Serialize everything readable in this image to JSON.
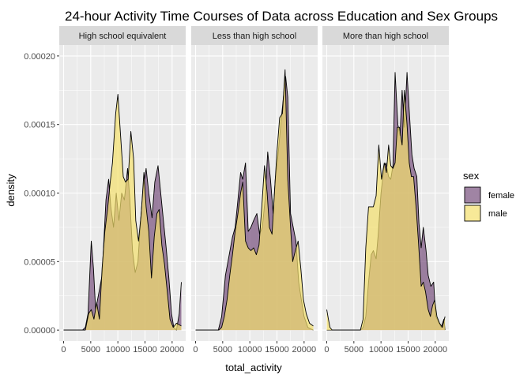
{
  "chart_data": {
    "type": "area",
    "title": "24-hour Activity Time Courses of Data across Education and Sex Groups",
    "xlabel": "total_activity",
    "ylabel": "density",
    "xlim": [
      -800,
      22500
    ],
    "ylim": [
      -8e-06,
      0.000208
    ],
    "x_ticks": [
      0,
      5000,
      10000,
      15000,
      20000
    ],
    "x_tick_labels": [
      "0",
      "5000",
      "10000",
      "15000",
      "20000"
    ],
    "y_ticks": [
      0,
      5e-05,
      0.0001,
      0.00015,
      0.0002
    ],
    "y_tick_labels": [
      "0.00000",
      "0.00005",
      "0.00010",
      "0.00015",
      "0.00020"
    ],
    "grid": true,
    "legend": {
      "title": "sex",
      "position": "right",
      "entries": [
        {
          "label": "female",
          "color": "#77507e"
        },
        {
          "label": "male",
          "color": "#f4e06c"
        }
      ]
    },
    "panels": [
      {
        "label": "High school equivalent",
        "series": [
          {
            "name": "female",
            "points": [
              [
                0,
                0
              ],
              [
                3500,
                0
              ],
              [
                4000,
                2e-06
              ],
              [
                4500,
                1.2e-05
              ],
              [
                5100,
                6.5e-05
              ],
              [
                5500,
                4.5e-05
              ],
              [
                5900,
                1.5e-05
              ],
              [
                6400,
                2.5e-05
              ],
              [
                7100,
                4e-05
              ],
              [
                7800,
                9.5e-05
              ],
              [
                8300,
                0.00011
              ],
              [
                8700,
                9e-05
              ],
              [
                9200,
                7.5e-05
              ],
              [
                9700,
                0.0001
              ],
              [
                10200,
                8e-05
              ],
              [
                10700,
                0.0001
              ],
              [
                11200,
                9.5e-05
              ],
              [
                11800,
                0.000118
              ],
              [
                12200,
                9.5e-05
              ],
              [
                12700,
                5.8e-05
              ],
              [
                13200,
                4.2e-05
              ],
              [
                13700,
                5e-05
              ],
              [
                14200,
                8e-05
              ],
              [
                14700,
                0.000105
              ],
              [
                15200,
                0.000118
              ],
              [
                15700,
                0.0001
              ],
              [
                16300,
                8.2e-05
              ],
              [
                16800,
                0.000108
              ],
              [
                17400,
                0.00012
              ],
              [
                17900,
                0.0001
              ],
              [
                18400,
                8e-05
              ],
              [
                18900,
                6e-05
              ],
              [
                19400,
                3.8e-05
              ],
              [
                19900,
                1.2e-05
              ],
              [
                20300,
                2e-06
              ],
              [
                20800,
                0
              ],
              [
                21300,
                1.2e-05
              ],
              [
                21700,
                3.5e-05
              ]
            ]
          },
          {
            "name": "male",
            "points": [
              [
                0,
                0
              ],
              [
                4000,
                0
              ],
              [
                4600,
                1.2e-05
              ],
              [
                5100,
                1.5e-05
              ],
              [
                5600,
                8e-06
              ],
              [
                6100,
                2e-05
              ],
              [
                6600,
                8e-06
              ],
              [
                7100,
                4.5e-05
              ],
              [
                7600,
                7.2e-05
              ],
              [
                8100,
                8.8e-05
              ],
              [
                8600,
                0.000108
              ],
              [
                9000,
                0.000122
              ],
              [
                9600,
                0.000158
              ],
              [
                10000,
                0.000172
              ],
              [
                10500,
                0.000142
              ],
              [
                11000,
                0.000112
              ],
              [
                11400,
                0.000108
              ],
              [
                11900,
                0.00011
              ],
              [
                12400,
                0.000145
              ],
              [
                12900,
                0.000125
              ],
              [
                13300,
                8e-05
              ],
              [
                13800,
                6.5e-05
              ],
              [
                14300,
                8.5e-05
              ],
              [
                14800,
                0.000115
              ],
              [
                15200,
                9e-05
              ],
              [
                15700,
                7.2e-05
              ],
              [
                16200,
                3.8e-05
              ],
              [
                16700,
                6.8e-05
              ],
              [
                17200,
                8.5e-05
              ],
              [
                17600,
                8.8e-05
              ],
              [
                18100,
                6.2e-05
              ],
              [
                18600,
                4.8e-05
              ],
              [
                19100,
                2.8e-05
              ],
              [
                19600,
                8e-06
              ],
              [
                20200,
                2e-06
              ],
              [
                20800,
                5e-06
              ],
              [
                21700,
                3e-06
              ]
            ]
          }
        ]
      },
      {
        "label": "Less than high school",
        "series": [
          {
            "name": "female",
            "points": [
              [
                0,
                0
              ],
              [
                4200,
                0
              ],
              [
                4800,
                1e-05
              ],
              [
                5500,
                4e-05
              ],
              [
                6200,
                5.5e-05
              ],
              [
                6800,
                6.8e-05
              ],
              [
                7300,
                7.5e-05
              ],
              [
                7800,
                9.5e-05
              ],
              [
                8300,
                0.000115
              ],
              [
                8700,
                0.00011
              ],
              [
                9200,
                0.000122
              ],
              [
                9700,
                7.2e-05
              ],
              [
                10200,
                7.5e-05
              ],
              [
                10700,
                8e-05
              ],
              [
                11300,
                8.5e-05
              ],
              [
                11800,
                7e-05
              ],
              [
                12300,
                7.5e-05
              ],
              [
                12800,
                9.5e-05
              ],
              [
                13300,
                0.00013
              ],
              [
                13800,
                0.00011
              ],
              [
                14300,
                8.5e-05
              ],
              [
                14700,
                0.00011
              ],
              [
                15200,
                0.000128
              ],
              [
                15700,
                0.00015
              ],
              [
                16200,
                0.00017
              ],
              [
                16600,
                0.000185
              ],
              [
                17000,
                0.00017
              ],
              [
                17500,
                8.5e-05
              ],
              [
                18000,
                7.5e-05
              ],
              [
                18500,
                6.5e-05
              ],
              [
                19000,
                3.5e-05
              ],
              [
                19500,
                2.2e-05
              ],
              [
                20000,
                1e-05
              ],
              [
                20700,
                2e-06
              ],
              [
                21700,
                0
              ]
            ]
          },
          {
            "name": "male",
            "points": [
              [
                0,
                0
              ],
              [
                4300,
                0
              ],
              [
                4800,
                2e-06
              ],
              [
                5300,
                1e-05
              ],
              [
                5800,
                2.2e-05
              ],
              [
                6300,
                4e-05
              ],
              [
                6800,
                5.5e-05
              ],
              [
                7300,
                7.2e-05
              ],
              [
                7800,
                8.5e-05
              ],
              [
                8300,
                0.0001
              ],
              [
                8700,
                0.000108
              ],
              [
                9200,
                6.5e-05
              ],
              [
                9700,
                6e-05
              ],
              [
                10200,
                5.8e-05
              ],
              [
                10700,
                6e-05
              ],
              [
                11200,
                5.5e-05
              ],
              [
                11700,
                6.2e-05
              ],
              [
                12200,
                9e-05
              ],
              [
                12700,
                0.00012
              ],
              [
                13200,
                0.0001
              ],
              [
                13600,
                7.5e-05
              ],
              [
                14100,
                7e-05
              ],
              [
                14600,
                0.000105
              ],
              [
                15000,
                0.00013
              ],
              [
                15500,
                0.000155
              ],
              [
                16000,
                0.000158
              ],
              [
                16500,
                0.00019
              ],
              [
                17000,
                0.00011
              ],
              [
                17500,
                7.5e-05
              ],
              [
                17900,
                5e-05
              ],
              [
                18400,
                5.8e-05
              ],
              [
                18900,
                6.5e-05
              ],
              [
                19400,
                4.5e-05
              ],
              [
                19900,
                2.2e-05
              ],
              [
                20400,
                1.2e-05
              ],
              [
                21000,
                5e-06
              ],
              [
                21700,
                3e-06
              ]
            ]
          }
        ]
      },
      {
        "label": "More than high school",
        "series": [
          {
            "name": "female",
            "points": [
              [
                0,
                0
              ],
              [
                6200,
                0
              ],
              [
                6700,
                2e-06
              ],
              [
                7200,
                1e-05
              ],
              [
                7700,
                3.5e-05
              ],
              [
                8200,
                5.5e-05
              ],
              [
                8600,
                5.8e-05
              ],
              [
                9100,
                5.2e-05
              ],
              [
                9500,
                7e-05
              ],
              [
                10000,
                0.0001
              ],
              [
                10500,
                0.000118
              ],
              [
                10900,
                0.000122
              ],
              [
                11400,
                0.000112
              ],
              [
                11800,
                0.00011
              ],
              [
                12200,
                0.00012
              ],
              [
                12600,
                0.000188
              ],
              [
                13100,
                0.00015
              ],
              [
                13500,
                0.000142
              ],
              [
                13900,
                0.000175
              ],
              [
                14300,
                0.000148
              ],
              [
                14800,
                0.000188
              ],
              [
                15200,
                0.00016
              ],
              [
                15700,
                0.000128
              ],
              [
                16100,
                0.000118
              ],
              [
                16600,
                0.000112
              ],
              [
                17000,
                7.8e-05
              ],
              [
                17400,
                6e-05
              ],
              [
                17800,
                7.5e-05
              ],
              [
                18300,
                5.8e-05
              ],
              [
                18700,
                4e-05
              ],
              [
                19200,
                3.2e-05
              ],
              [
                19700,
                3.5e-05
              ],
              [
                20100,
                1e-05
              ],
              [
                20600,
                6e-06
              ],
              [
                21100,
                2e-06
              ],
              [
                21600,
                8e-06
              ],
              [
                21800,
                0
              ]
            ]
          },
          {
            "name": "male",
            "points": [
              [
                0,
                1.5e-05
              ],
              [
                300,
                8e-06
              ],
              [
                600,
                2e-06
              ],
              [
                1000,
                0
              ],
              [
                6200,
                0
              ],
              [
                6700,
                8e-06
              ],
              [
                7200,
                6e-05
              ],
              [
                7700,
                9e-05
              ],
              [
                8200,
                9e-05
              ],
              [
                8600,
                9e-05
              ],
              [
                9100,
                9.8e-05
              ],
              [
                9600,
                0.000135
              ],
              [
                10100,
                0.00011
              ],
              [
                10600,
                0.000122
              ],
              [
                11000,
                0.000115
              ],
              [
                11400,
                0.000135
              ],
              [
                11800,
                0.00012
              ],
              [
                12200,
                0.000118
              ],
              [
                12600,
                0.000122
              ],
              [
                13000,
                0.000148
              ],
              [
                13400,
                0.000148
              ],
              [
                13900,
                0.000135
              ],
              [
                14300,
                0.000175
              ],
              [
                14800,
                0.00015
              ],
              [
                15200,
                0.000122
              ],
              [
                15600,
                0.000112
              ],
              [
                16000,
                0.000112
              ],
              [
                16500,
                8.8e-05
              ],
              [
                16900,
                6.5e-05
              ],
              [
                17400,
                3.2e-05
              ],
              [
                17800,
                3.5e-05
              ],
              [
                18200,
                2.8e-05
              ],
              [
                18700,
                1.5e-05
              ],
              [
                19100,
                1e-05
              ],
              [
                19500,
                1.8e-05
              ],
              [
                19900,
                2.2e-05
              ],
              [
                20300,
                1e-05
              ],
              [
                20800,
                5e-06
              ],
              [
                21300,
                2e-06
              ],
              [
                21800,
                1e-05
              ]
            ]
          }
        ]
      }
    ]
  }
}
